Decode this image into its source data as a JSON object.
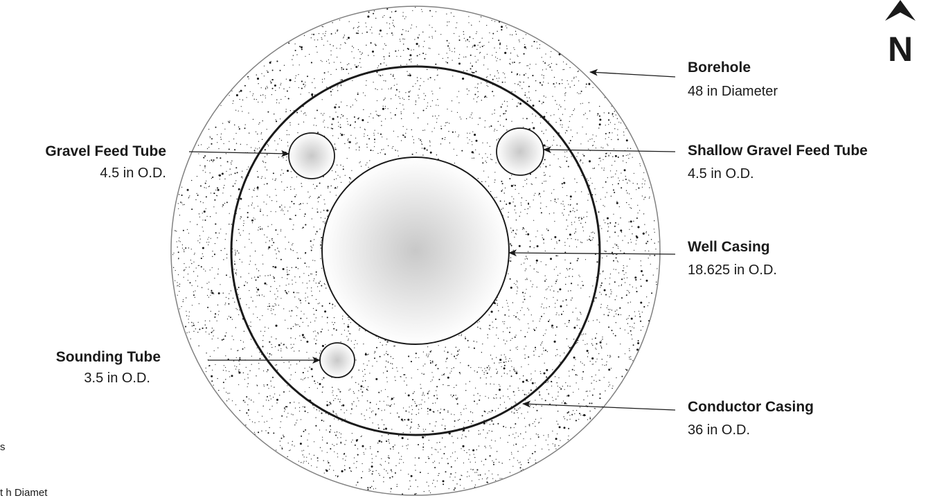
{
  "north_label": "N",
  "cropped_text": [
    "s",
    "t h  Diamet"
  ],
  "callouts": [
    {
      "id": "borehole",
      "title": "Borehole",
      "detail": "48 in Diameter"
    },
    {
      "id": "gravel-feed-tube",
      "title": "Gravel Feed Tube",
      "detail": "4.5 in O.D."
    },
    {
      "id": "shallow-gravel-feed-tube",
      "title": "Shallow Gravel Feed Tube",
      "detail": "4.5 in O.D."
    },
    {
      "id": "well-casing",
      "title": "Well Casing",
      "detail": "18.625 in O.D."
    },
    {
      "id": "sounding-tube",
      "title": "Sounding Tube",
      "detail": "3.5 in O.D."
    },
    {
      "id": "conductor-casing",
      "title": "Conductor Casing",
      "detail": "36 in O.D."
    }
  ],
  "colors": {
    "ink": "#1a1a1a",
    "borehole_outline": "#808080",
    "pipe_center": "#c8c8c8",
    "pipe_edge": "#ffffff"
  }
}
